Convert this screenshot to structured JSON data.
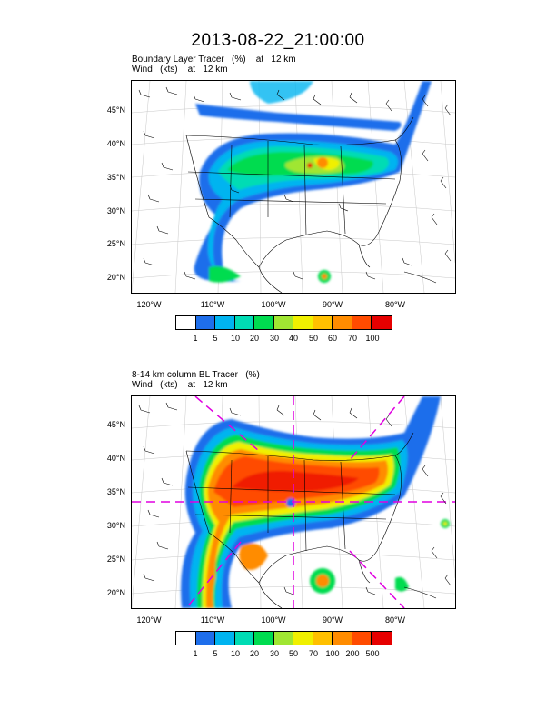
{
  "title": "2013-08-22_21:00:00",
  "panels": [
    {
      "line1": "Boundary Layer Tracer   (%)    at   12 km",
      "line2": "Wind   (kts)    at   12 km",
      "lat_ticks": [
        "45°N",
        "40°N",
        "35°N",
        "30°N",
        "25°N",
        "20°N"
      ],
      "lon_ticks": [
        "120°W",
        "110°W",
        "100°W",
        "90°W",
        "80°W"
      ],
      "colorbar_labels": [
        "1",
        "5",
        "10",
        "20",
        "30",
        "40",
        "50",
        "60",
        "70",
        "100"
      ]
    },
    {
      "line1": "8-14 km column BL Tracer   (%)",
      "line2": "Wind   (kts)    at   12 km",
      "lat_ticks": [
        "45°N",
        "40°N",
        "35°N",
        "30°N",
        "25°N",
        "20°N"
      ],
      "lon_ticks": [
        "120°W",
        "110°W",
        "100°W",
        "90°W",
        "80°W"
      ],
      "colorbar_labels": [
        "1",
        "5",
        "10",
        "20",
        "30",
        "50",
        "70",
        "100",
        "200",
        "500"
      ]
    }
  ],
  "colors": {
    "colorbar": [
      "#ffffff",
      "#1e6eeb",
      "#00b4f0",
      "#00dcb4",
      "#00dc50",
      "#a0e632",
      "#f0f000",
      "#ffc000",
      "#ff8c00",
      "#ff4b00",
      "#e60000"
    ]
  }
}
